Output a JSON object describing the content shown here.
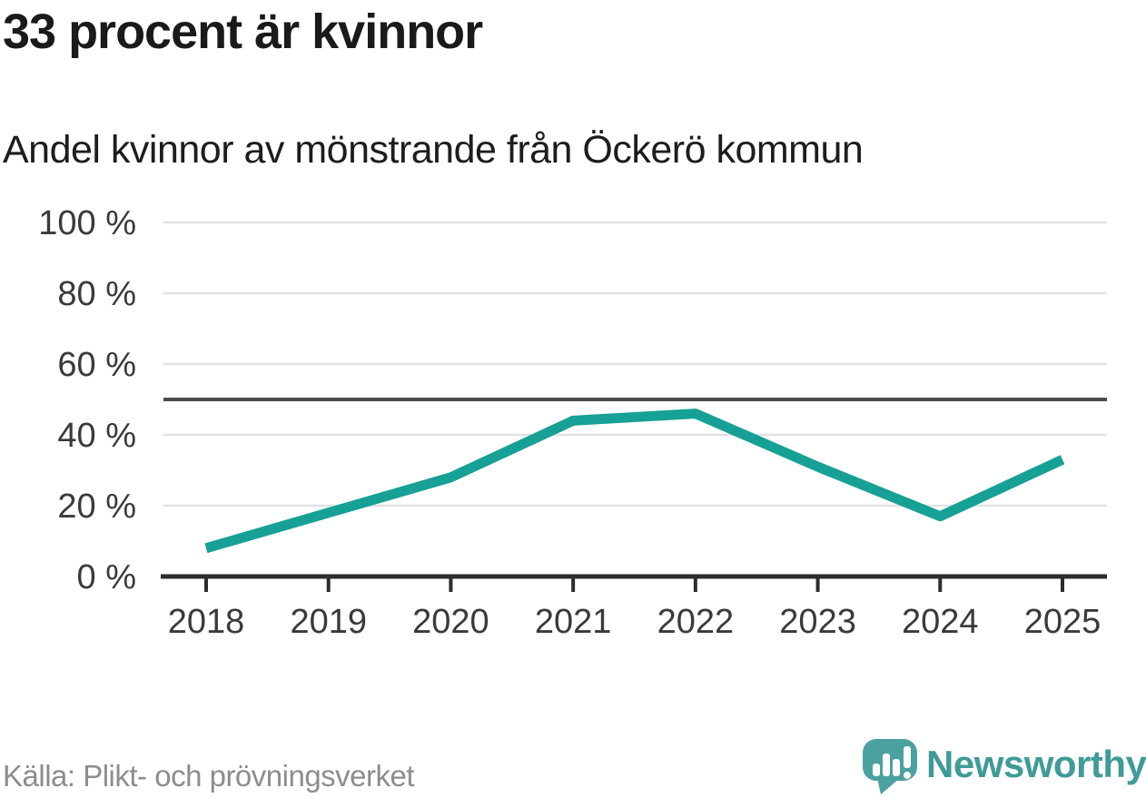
{
  "header": {
    "title": "33 procent är kvinnor",
    "subtitle": "Andel kvinnor av mönstrande från Öckerö kommun"
  },
  "chart_data": {
    "type": "line",
    "title": "33 procent är kvinnor",
    "subtitle": "Andel kvinnor av mönstrande från Öckerö kommun",
    "categories": [
      "2018",
      "2019",
      "2020",
      "2021",
      "2022",
      "2023",
      "2024",
      "2025"
    ],
    "values": [
      8,
      18,
      28,
      44,
      46,
      31,
      17,
      33
    ],
    "series_name": "Andel kvinnor av mönstrande",
    "unit": "%",
    "xlabel": "",
    "ylabel": "",
    "ylim": [
      0,
      100
    ],
    "yticks": [
      {
        "value": 0,
        "label": "0 %"
      },
      {
        "value": 20,
        "label": "20 %"
      },
      {
        "value": 40,
        "label": "40 %"
      },
      {
        "value": 60,
        "label": "60 %"
      },
      {
        "value": 80,
        "label": "80 %"
      },
      {
        "value": 100,
        "label": "100 %"
      }
    ],
    "reference_line": 50,
    "grid": true,
    "legend_position": "none",
    "colors": {
      "line": "#16a096",
      "gridline": "#e2e2e2",
      "reference_line": "#4b4b4b",
      "axis": "#2d2d2d",
      "tick_label": "#3a3a3a"
    }
  },
  "footer": {
    "source": "Källa: Plikt- och prövningsverket",
    "brand": "Newsworthy",
    "brand_color": "#3f9b98",
    "logo_icon": "speech-bubble-bar-chart-icon",
    "logo_color": "#4ba1a0"
  }
}
